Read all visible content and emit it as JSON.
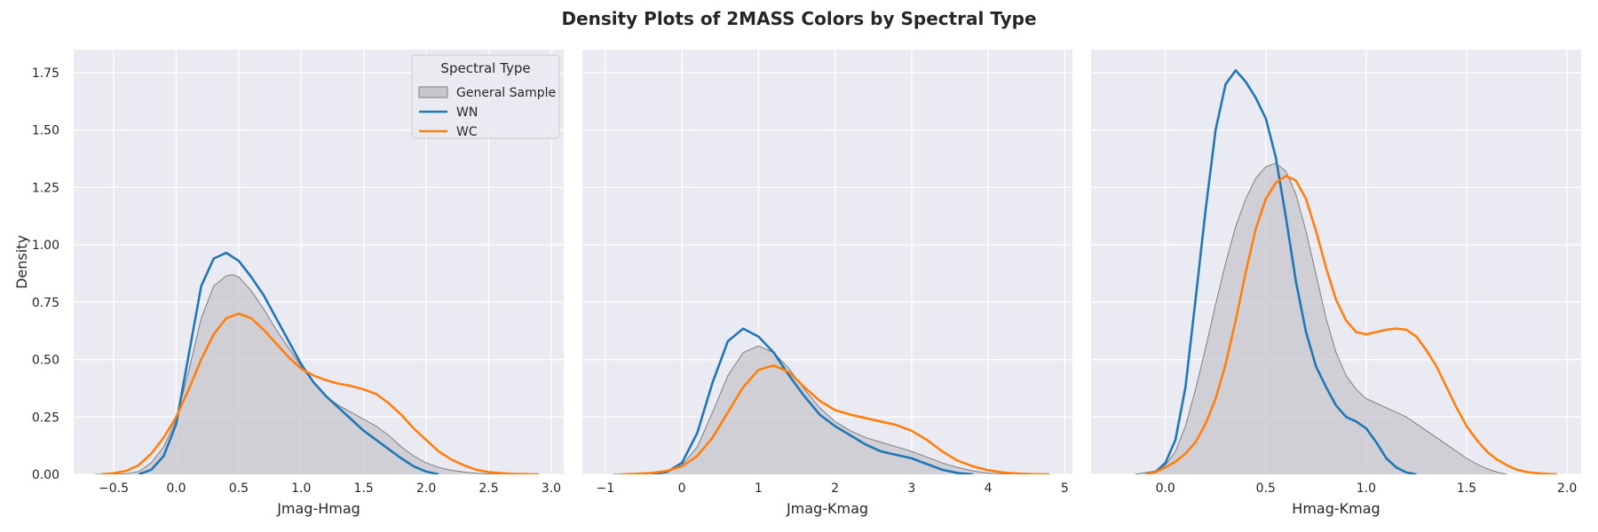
{
  "figure": {
    "title": "Density Plots of 2MASS Colors by Spectral Type",
    "background": "#ffffff",
    "axes_background": "#eaeaf2",
    "grid_color": "#ffffff"
  },
  "legend": {
    "title": "Spectral Type",
    "placement": "top-right of first panel",
    "entries": [
      {
        "label": "General Sample",
        "color": "#7f7f7f",
        "fill": "#c8c6cc",
        "kind": "area"
      },
      {
        "label": "WN",
        "color": "#1f77b4",
        "kind": "line"
      },
      {
        "label": "WC",
        "color": "#ff7f0e",
        "kind": "line"
      }
    ]
  },
  "chart_data": [
    {
      "type": "area",
      "xlabel": "Jmag-Hmag",
      "ylabel": "Density",
      "xlim": [
        -0.82,
        3.1
      ],
      "ylim": [
        0,
        1.85
      ],
      "xticks": [
        -0.5,
        0.0,
        0.5,
        1.0,
        1.5,
        2.0,
        2.5,
        3.0
      ],
      "xtick_labels": [
        "−0.5",
        "0.0",
        "0.5",
        "1.0",
        "1.5",
        "2.0",
        "2.5",
        "3.0"
      ],
      "yticks": [
        0,
        0.25,
        0.5,
        0.75,
        1.0,
        1.25,
        1.5,
        1.75
      ],
      "ytick_labels": [
        "0.00",
        "0.25",
        "0.50",
        "0.75",
        "1.00",
        "1.25",
        "1.50",
        "1.75"
      ],
      "grid": true,
      "series": [
        {
          "name": "General Sample",
          "color": "#7f7f7f",
          "fill": "#c8c6cc",
          "x": [
            -0.65,
            -0.5,
            -0.4,
            -0.3,
            -0.2,
            -0.1,
            0.0,
            0.1,
            0.2,
            0.3,
            0.4,
            0.45,
            0.5,
            0.6,
            0.7,
            0.8,
            0.9,
            1.0,
            1.1,
            1.2,
            1.3,
            1.4,
            1.5,
            1.6,
            1.7,
            1.8,
            1.9,
            2.0,
            2.1,
            2.2,
            2.3,
            2.4,
            2.5,
            2.6,
            2.7
          ],
          "y": [
            0.0,
            0.0,
            0.003,
            0.012,
            0.05,
            0.12,
            0.24,
            0.45,
            0.68,
            0.82,
            0.865,
            0.87,
            0.86,
            0.8,
            0.72,
            0.63,
            0.55,
            0.47,
            0.4,
            0.34,
            0.3,
            0.27,
            0.24,
            0.21,
            0.17,
            0.12,
            0.08,
            0.05,
            0.03,
            0.018,
            0.01,
            0.005,
            0.002,
            0.001,
            0.0
          ]
        },
        {
          "name": "WN",
          "color": "#1f77b4",
          "x": [
            -0.3,
            -0.2,
            -0.1,
            0.0,
            0.1,
            0.2,
            0.3,
            0.4,
            0.5,
            0.6,
            0.7,
            0.8,
            0.9,
            1.0,
            1.1,
            1.2,
            1.3,
            1.4,
            1.5,
            1.6,
            1.7,
            1.8,
            1.9,
            2.0,
            2.1
          ],
          "y": [
            0.0,
            0.02,
            0.08,
            0.22,
            0.52,
            0.82,
            0.94,
            0.965,
            0.93,
            0.86,
            0.78,
            0.68,
            0.58,
            0.48,
            0.4,
            0.34,
            0.29,
            0.24,
            0.19,
            0.15,
            0.11,
            0.07,
            0.035,
            0.012,
            0.0
          ]
        },
        {
          "name": "WC",
          "color": "#ff7f0e",
          "x": [
            -0.6,
            -0.5,
            -0.4,
            -0.3,
            -0.2,
            -0.1,
            0.0,
            0.1,
            0.2,
            0.3,
            0.4,
            0.5,
            0.6,
            0.7,
            0.8,
            0.9,
            1.0,
            1.1,
            1.2,
            1.3,
            1.4,
            1.5,
            1.6,
            1.7,
            1.8,
            1.9,
            2.0,
            2.1,
            2.2,
            2.3,
            2.4,
            2.5,
            2.6,
            2.7,
            2.8,
            2.9
          ],
          "y": [
            0.0,
            0.005,
            0.015,
            0.04,
            0.09,
            0.16,
            0.25,
            0.37,
            0.5,
            0.61,
            0.68,
            0.7,
            0.68,
            0.63,
            0.57,
            0.51,
            0.46,
            0.43,
            0.41,
            0.395,
            0.385,
            0.37,
            0.35,
            0.31,
            0.26,
            0.2,
            0.15,
            0.1,
            0.065,
            0.04,
            0.02,
            0.01,
            0.005,
            0.002,
            0.001,
            0.0
          ]
        }
      ]
    },
    {
      "type": "area",
      "xlabel": "Jmag-Kmag",
      "ylabel": "",
      "xlim": [
        -1.3,
        5.1
      ],
      "ylim": [
        0,
        1.85
      ],
      "xticks": [
        -1,
        0,
        1,
        2,
        3,
        4,
        5
      ],
      "xtick_labels": [
        "−1",
        "0",
        "1",
        "2",
        "3",
        "4",
        "5"
      ],
      "yticks": [
        0,
        0.25,
        0.5,
        0.75,
        1.0,
        1.25,
        1.5,
        1.75
      ],
      "ytick_labels": [],
      "grid": true,
      "series": [
        {
          "name": "General Sample",
          "color": "#7f7f7f",
          "fill": "#c8c6cc",
          "x": [
            -0.9,
            -0.6,
            -0.4,
            -0.2,
            0.0,
            0.2,
            0.4,
            0.6,
            0.8,
            1.0,
            1.2,
            1.4,
            1.6,
            1.8,
            2.0,
            2.2,
            2.4,
            2.6,
            2.8,
            3.0,
            3.2,
            3.4,
            3.6,
            3.8,
            4.0,
            4.2,
            4.5
          ],
          "y": [
            0.0,
            0.002,
            0.005,
            0.015,
            0.04,
            0.12,
            0.27,
            0.43,
            0.53,
            0.56,
            0.53,
            0.46,
            0.37,
            0.29,
            0.23,
            0.19,
            0.16,
            0.14,
            0.12,
            0.1,
            0.075,
            0.05,
            0.03,
            0.015,
            0.006,
            0.002,
            0.0
          ]
        },
        {
          "name": "WN",
          "color": "#1f77b4",
          "x": [
            -0.4,
            -0.2,
            0.0,
            0.2,
            0.4,
            0.6,
            0.8,
            1.0,
            1.2,
            1.4,
            1.6,
            1.8,
            2.0,
            2.2,
            2.4,
            2.6,
            2.8,
            3.0,
            3.2,
            3.4,
            3.6,
            3.8
          ],
          "y": [
            0.0,
            0.01,
            0.05,
            0.18,
            0.4,
            0.58,
            0.635,
            0.6,
            0.53,
            0.43,
            0.34,
            0.26,
            0.21,
            0.17,
            0.13,
            0.1,
            0.085,
            0.07,
            0.045,
            0.02,
            0.006,
            0.0
          ]
        },
        {
          "name": "WC",
          "color": "#ff7f0e",
          "x": [
            -0.8,
            -0.6,
            -0.4,
            -0.2,
            0.0,
            0.2,
            0.4,
            0.6,
            0.8,
            1.0,
            1.2,
            1.4,
            1.6,
            1.8,
            2.0,
            2.2,
            2.4,
            2.6,
            2.8,
            3.0,
            3.2,
            3.4,
            3.6,
            3.8,
            4.0,
            4.2,
            4.4,
            4.6,
            4.8
          ],
          "y": [
            0.0,
            0.002,
            0.006,
            0.015,
            0.035,
            0.08,
            0.16,
            0.27,
            0.38,
            0.455,
            0.475,
            0.445,
            0.38,
            0.32,
            0.28,
            0.26,
            0.245,
            0.23,
            0.215,
            0.19,
            0.15,
            0.1,
            0.06,
            0.035,
            0.018,
            0.008,
            0.003,
            0.001,
            0.0
          ]
        }
      ]
    },
    {
      "type": "area",
      "xlabel": "Hmag-Kmag",
      "ylabel": "",
      "xlim": [
        -0.37,
        2.07
      ],
      "ylim": [
        0,
        1.85
      ],
      "xticks": [
        0.0,
        0.5,
        1.0,
        1.5,
        2.0
      ],
      "xtick_labels": [
        "0.0",
        "0.5",
        "1.0",
        "1.5",
        "2.0"
      ],
      "yticks": [
        0,
        0.25,
        0.5,
        0.75,
        1.0,
        1.25,
        1.5,
        1.75
      ],
      "ytick_labels": [],
      "grid": true,
      "series": [
        {
          "name": "General Sample",
          "color": "#7f7f7f",
          "fill": "#c8c6cc",
          "x": [
            -0.15,
            -0.05,
            0.0,
            0.05,
            0.1,
            0.15,
            0.2,
            0.25,
            0.3,
            0.35,
            0.4,
            0.45,
            0.5,
            0.55,
            0.6,
            0.65,
            0.7,
            0.75,
            0.8,
            0.85,
            0.9,
            0.95,
            1.0,
            1.05,
            1.1,
            1.15,
            1.2,
            1.25,
            1.3,
            1.35,
            1.4,
            1.45,
            1.5,
            1.55,
            1.6,
            1.65,
            1.7
          ],
          "y": [
            0.0,
            0.015,
            0.04,
            0.1,
            0.21,
            0.37,
            0.55,
            0.74,
            0.92,
            1.08,
            1.2,
            1.29,
            1.34,
            1.355,
            1.32,
            1.22,
            1.06,
            0.87,
            0.68,
            0.53,
            0.43,
            0.37,
            0.33,
            0.31,
            0.29,
            0.27,
            0.25,
            0.22,
            0.19,
            0.16,
            0.13,
            0.1,
            0.07,
            0.045,
            0.025,
            0.01,
            0.0
          ]
        },
        {
          "name": "WN",
          "color": "#1f77b4",
          "x": [
            -0.1,
            -0.05,
            0.0,
            0.05,
            0.1,
            0.15,
            0.2,
            0.25,
            0.3,
            0.35,
            0.4,
            0.45,
            0.5,
            0.55,
            0.6,
            0.65,
            0.7,
            0.75,
            0.8,
            0.85,
            0.9,
            0.95,
            1.0,
            1.05,
            1.1,
            1.15,
            1.2,
            1.25
          ],
          "y": [
            0.0,
            0.01,
            0.05,
            0.15,
            0.38,
            0.76,
            1.15,
            1.5,
            1.7,
            1.76,
            1.71,
            1.64,
            1.55,
            1.38,
            1.12,
            0.84,
            0.62,
            0.47,
            0.38,
            0.3,
            0.25,
            0.23,
            0.2,
            0.14,
            0.07,
            0.03,
            0.008,
            0.0
          ]
        },
        {
          "name": "WC",
          "color": "#ff7f0e",
          "x": [
            -0.1,
            -0.05,
            0.0,
            0.05,
            0.1,
            0.15,
            0.2,
            0.25,
            0.3,
            0.35,
            0.4,
            0.45,
            0.5,
            0.55,
            0.6,
            0.65,
            0.7,
            0.75,
            0.8,
            0.85,
            0.9,
            0.95,
            1.0,
            1.05,
            1.1,
            1.15,
            1.2,
            1.25,
            1.3,
            1.35,
            1.4,
            1.45,
            1.5,
            1.55,
            1.6,
            1.65,
            1.7,
            1.75,
            1.8,
            1.85,
            1.9,
            1.95
          ],
          "y": [
            0.0,
            0.01,
            0.03,
            0.055,
            0.09,
            0.14,
            0.22,
            0.33,
            0.48,
            0.67,
            0.88,
            1.07,
            1.2,
            1.27,
            1.3,
            1.28,
            1.2,
            1.06,
            0.9,
            0.76,
            0.67,
            0.62,
            0.61,
            0.62,
            0.63,
            0.635,
            0.63,
            0.6,
            0.54,
            0.47,
            0.38,
            0.29,
            0.21,
            0.15,
            0.1,
            0.065,
            0.04,
            0.02,
            0.01,
            0.005,
            0.002,
            0.0
          ]
        }
      ]
    }
  ]
}
